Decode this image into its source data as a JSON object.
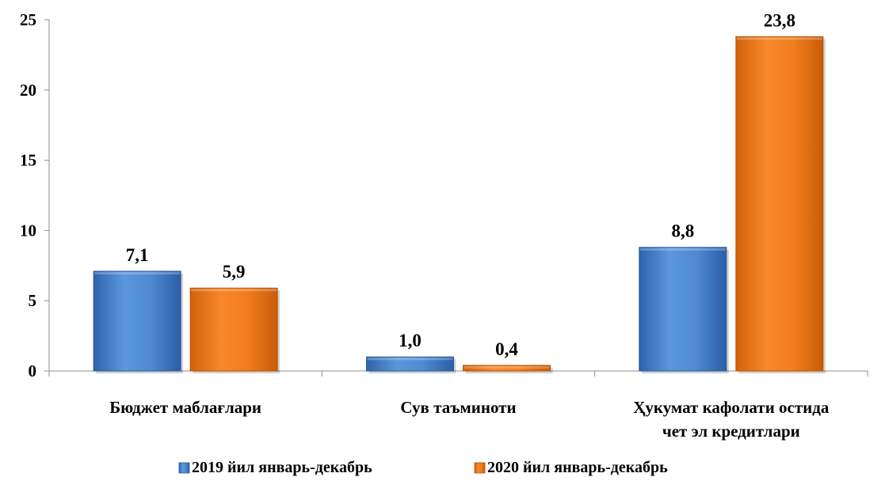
{
  "chart_data": {
    "type": "bar",
    "categories": [
      [
        "Бюджет маблағлари"
      ],
      [
        "Сув таъминоти"
      ],
      [
        "Ҳукумат кафолати остида",
        "чет эл кредитлари"
      ]
    ],
    "series": [
      {
        "name": "2019 йил январь-декабрь",
        "values": [
          7.1,
          1.0,
          8.8
        ],
        "labels": [
          "7,1",
          "1,0",
          "8,8"
        ],
        "color": "#4a86d0"
      },
      {
        "name": "2020 йил январь-декабрь",
        "values": [
          5.9,
          0.4,
          23.8
        ],
        "labels": [
          "5,9",
          "0,4",
          "23,8"
        ],
        "color": "#f07c1a"
      }
    ],
    "ylim": [
      0,
      25
    ],
    "yticks": [
      0,
      5,
      10,
      15,
      20,
      25
    ],
    "grid": false,
    "legend_position": "bottom"
  }
}
